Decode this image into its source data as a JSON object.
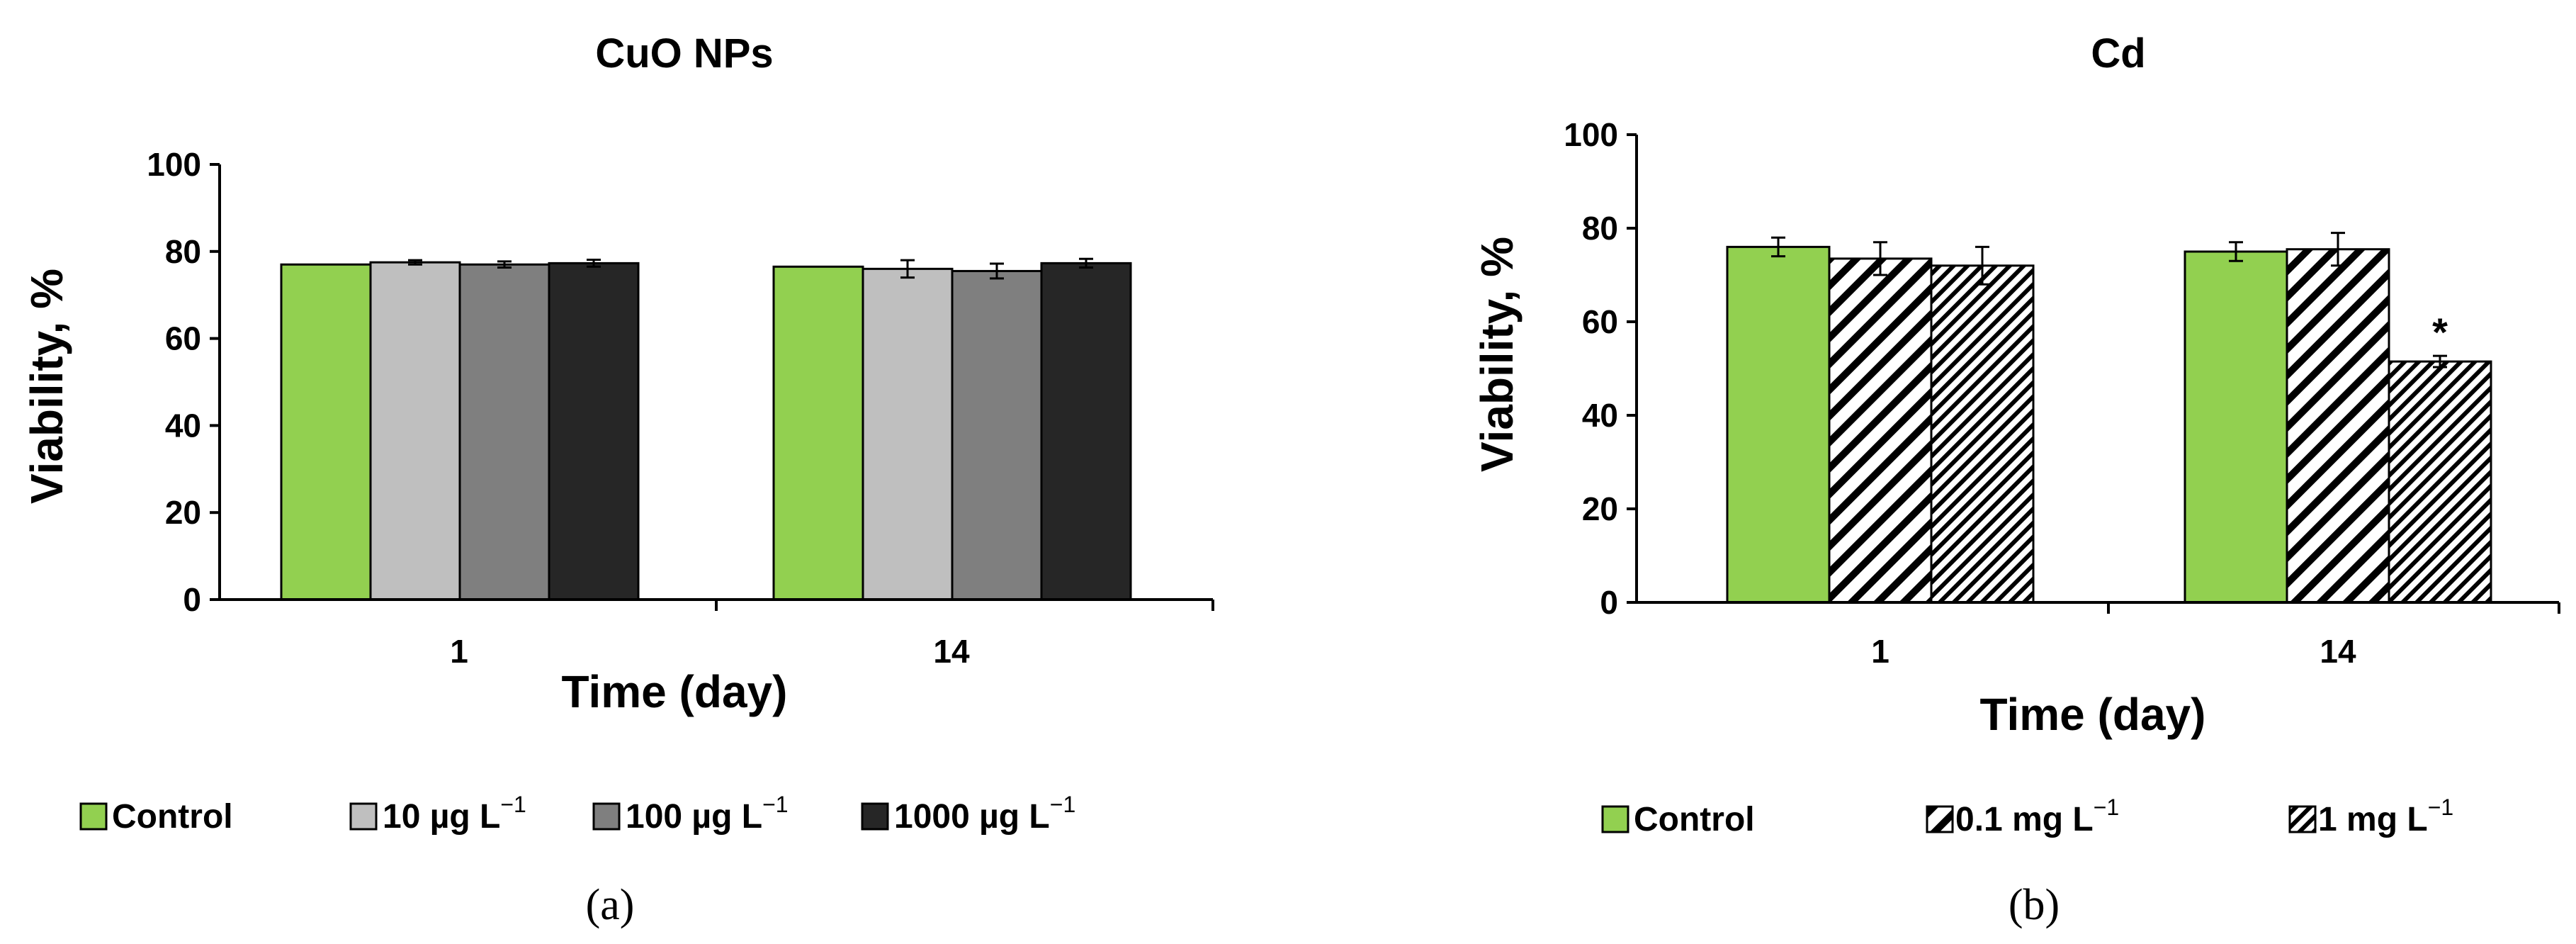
{
  "colors": {
    "control": "#92D050",
    "light_gray": "#BFBFBF",
    "mid_gray": "#7F7F7F",
    "dark_gray": "#262626",
    "hatch_white": "#FFFFFF",
    "axis": "#000000"
  },
  "chart_data": [
    {
      "type": "bar",
      "title": "CuO NPs",
      "xlabel": "Time (day)",
      "ylabel": "Viability, %",
      "ylim": [
        0,
        100
      ],
      "yticks": [
        0,
        20,
        40,
        60,
        80,
        100
      ],
      "categories": [
        "1",
        "14"
      ],
      "panel_label": "(a)",
      "legend_position": "bottom",
      "series": [
        {
          "name": "Control",
          "unit": "",
          "fill": "solid",
          "color": "#92D050",
          "values": [
            77,
            76.5
          ],
          "errors": [
            0,
            0
          ]
        },
        {
          "name": "10 µg L",
          "unit": "−1",
          "fill": "solid",
          "color": "#BFBFBF",
          "values": [
            77.5,
            76
          ],
          "errors": [
            0.5,
            2
          ]
        },
        {
          "name": "100 µg L",
          "unit": "−1",
          "fill": "solid",
          "color": "#7F7F7F",
          "values": [
            77,
            75.5
          ],
          "errors": [
            0.7,
            1.7
          ]
        },
        {
          "name": "1000 µg L",
          "unit": "−1",
          "fill": "solid",
          "color": "#262626",
          "values": [
            77.3,
            77.3
          ],
          "errors": [
            0.8,
            1
          ]
        }
      ],
      "annotations": []
    },
    {
      "type": "bar",
      "title": "Cd",
      "xlabel": "Time (day)",
      "ylabel": "Viability, %",
      "ylim": [
        0,
        100
      ],
      "yticks": [
        0,
        20,
        40,
        60,
        80,
        100
      ],
      "categories": [
        "1",
        "14"
      ],
      "panel_label": "(b)",
      "legend_position": "bottom",
      "series": [
        {
          "name": "Control",
          "unit": "",
          "fill": "solid",
          "color": "#92D050",
          "values": [
            76,
            75
          ],
          "errors": [
            2,
            2
          ]
        },
        {
          "name": "0.1 mg L",
          "unit": "−1",
          "fill": "hatch-wide",
          "color": "#000000",
          "values": [
            73.5,
            75.5
          ],
          "errors": [
            3.5,
            3.5
          ]
        },
        {
          "name": "1 mg L",
          "unit": "−1",
          "fill": "hatch-dense",
          "color": "#000000",
          "values": [
            72,
            51.5
          ],
          "errors": [
            4,
            1.2
          ]
        }
      ],
      "annotations": [
        {
          "text": "*",
          "series": 2,
          "category": 1
        }
      ]
    }
  ]
}
